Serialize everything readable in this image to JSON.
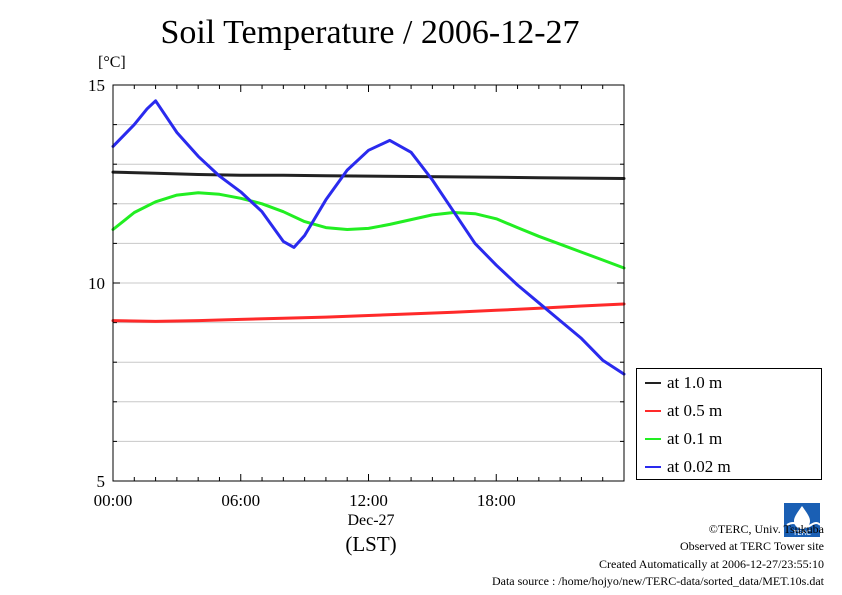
{
  "title": "Soil Temperature / 2006-12-27",
  "unit_label": "[°C]",
  "x_axis": {
    "date_label": "Dec-27",
    "timezone_label": "(LST)"
  },
  "legend": [
    {
      "label": "at 1.0 m",
      "color": "#222222"
    },
    {
      "label": "at 0.5 m",
      "color": "#ff2a2a"
    },
    {
      "label": "at 0.1 m",
      "color": "#22ee22"
    },
    {
      "label": "at 0.02 m",
      "color": "#2a2aee"
    }
  ],
  "credits": {
    "org": "©TERC, Univ. Tsukuba",
    "site": "Observed at TERC Tower site",
    "created": "Created Automatically at 2006-12-27/23:55:10",
    "source": "Data source : /home/hojyo/new/TERC-data/sorted_data/MET.10s.dat"
  },
  "logo_text": "TERC",
  "chart_data": {
    "type": "line",
    "title": "Soil Temperature / 2006-12-27",
    "ylabel": "[°C]",
    "xlabel": "(LST)",
    "x_unit": "hour of day",
    "xlim": [
      0,
      24
    ],
    "ylim": [
      5,
      15
    ],
    "x_ticks": [
      0,
      6,
      12,
      18
    ],
    "x_tick_labels": [
      "00:00",
      "06:00",
      "12:00",
      "18:00"
    ],
    "y_ticks": [
      5,
      10,
      15
    ],
    "y_tick_labels": [
      "5",
      "10",
      "15"
    ],
    "grid": "horizontal",
    "legend_position": "right-bottom",
    "series": [
      {
        "name": "at 1.0 m",
        "color": "#222222",
        "x": [
          0,
          2,
          4,
          6,
          8,
          10,
          12,
          14,
          16,
          18,
          20,
          22,
          24
        ],
        "y": [
          12.8,
          12.77,
          12.74,
          12.72,
          12.72,
          12.71,
          12.7,
          12.69,
          12.68,
          12.67,
          12.66,
          12.65,
          12.64
        ]
      },
      {
        "name": "at 0.5 m",
        "color": "#ff2a2a",
        "x": [
          0,
          2,
          4,
          6,
          8,
          10,
          12,
          14,
          16,
          18,
          20,
          22,
          24
        ],
        "y": [
          9.05,
          9.03,
          9.05,
          9.08,
          9.11,
          9.14,
          9.18,
          9.22,
          9.26,
          9.31,
          9.36,
          9.42,
          9.47
        ]
      },
      {
        "name": "at 0.1 m",
        "color": "#22ee22",
        "x": [
          0,
          1,
          2,
          3,
          4,
          5,
          6,
          7,
          8,
          9,
          10,
          11,
          12,
          13,
          14,
          15,
          16,
          17,
          18,
          19,
          20,
          21,
          22,
          23,
          24
        ],
        "y": [
          11.35,
          11.78,
          12.05,
          12.22,
          12.28,
          12.24,
          12.14,
          12.0,
          11.8,
          11.55,
          11.4,
          11.35,
          11.38,
          11.48,
          11.6,
          11.72,
          11.78,
          11.75,
          11.62,
          11.4,
          11.18,
          10.98,
          10.78,
          10.58,
          10.38
        ]
      },
      {
        "name": "at 0.02 m",
        "color": "#2a2aee",
        "x": [
          0,
          1,
          1.6,
          2,
          3,
          4,
          5,
          6,
          7,
          8,
          8.5,
          9,
          10,
          11,
          12,
          13,
          14,
          15,
          16,
          17,
          18,
          19,
          20,
          21,
          22,
          23,
          24
        ],
        "y": [
          13.45,
          14.0,
          14.4,
          14.6,
          13.8,
          13.2,
          12.7,
          12.3,
          11.8,
          11.05,
          10.9,
          11.2,
          12.1,
          12.85,
          13.35,
          13.6,
          13.3,
          12.6,
          11.8,
          11.0,
          10.45,
          9.95,
          9.5,
          9.05,
          8.6,
          8.05,
          7.7
        ]
      }
    ]
  }
}
